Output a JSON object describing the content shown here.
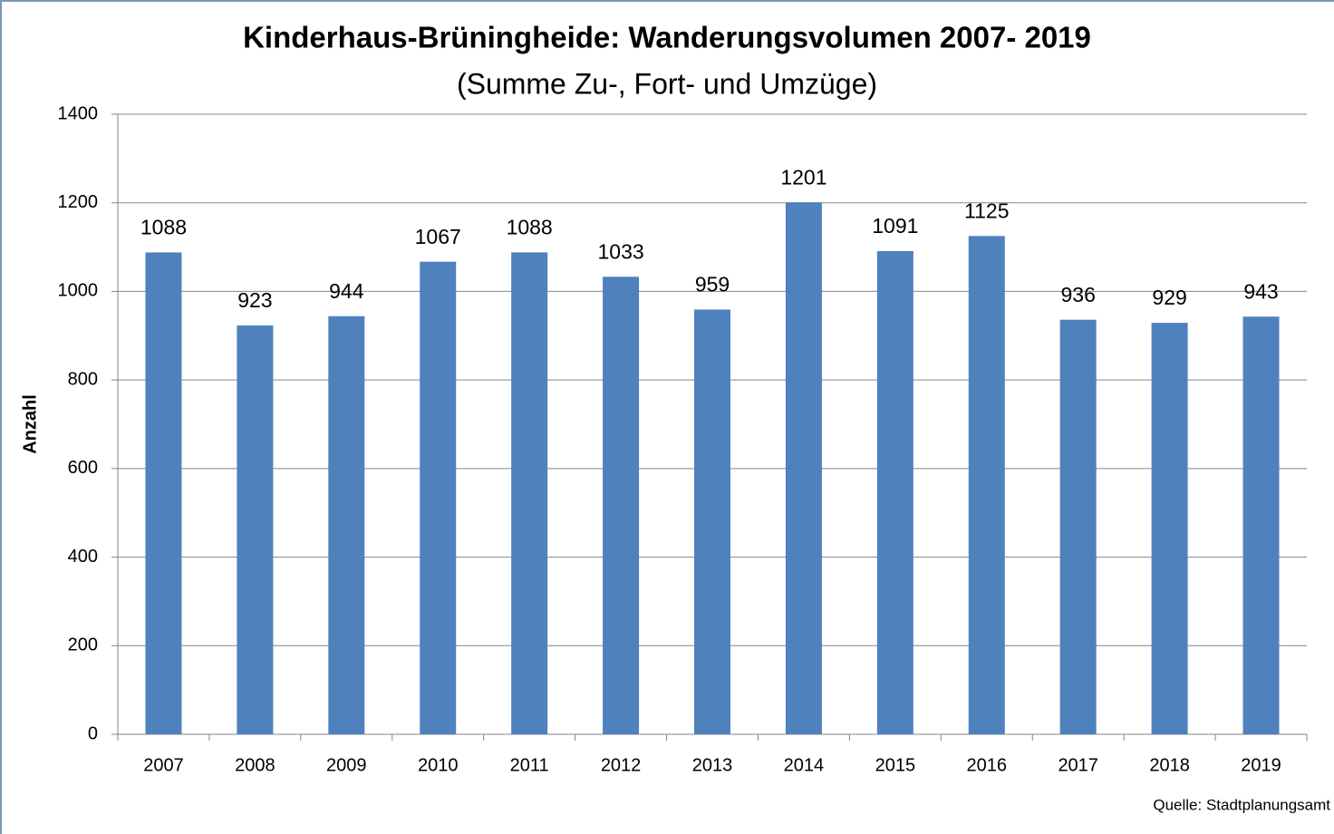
{
  "chart_data": {
    "type": "bar",
    "title": "Kinderhaus-Brüningheide: Wanderungsvolumen 2007- 2019",
    "subtitle": "(Summe Zu-, Fort- und Umzüge)",
    "y_label": "Anzahl",
    "annotation": "Quelle:  Stadtplanungsamt",
    "categories": [
      "2007",
      "2008",
      "2009",
      "2010",
      "2011",
      "2012",
      "2013",
      "2014",
      "2015",
      "2016",
      "2017",
      "2018",
      "2019"
    ],
    "values": [
      1088,
      923,
      944,
      1067,
      1088,
      1033,
      959,
      1201,
      1091,
      1125,
      936,
      929,
      943
    ],
    "color": "#4f81bd",
    "ylim": [
      0,
      1400
    ],
    "yticks": [
      0,
      200,
      400,
      600,
      800,
      1000,
      1200,
      1400
    ],
    "grid": true
  }
}
